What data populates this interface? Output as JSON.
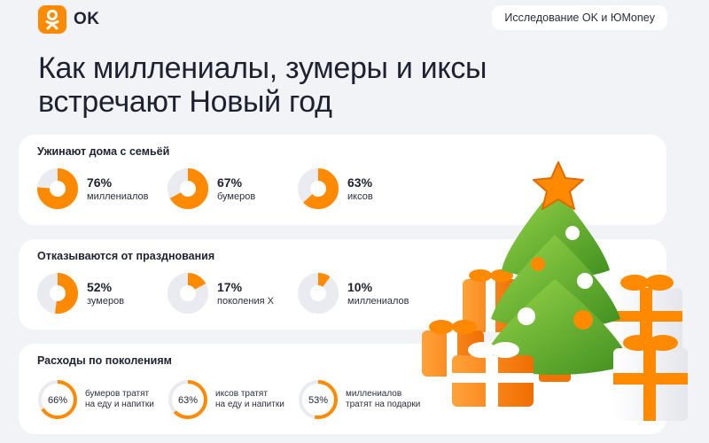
{
  "brand": {
    "name": "OK",
    "research_label": "Исследование OK и ЮMoney",
    "accent": "#ff8a00"
  },
  "headline": {
    "line1": "Как миллениалы, зумеры и иксы",
    "line2": "встречают Новый год"
  },
  "sections": [
    {
      "title": "Ужинают дома с семьёй",
      "items": [
        {
          "value": "76%",
          "fraction": 0.76,
          "label": "миллениалов"
        },
        {
          "value": "67%",
          "fraction": 0.67,
          "label": "бумеров"
        },
        {
          "value": "63%",
          "fraction": 0.63,
          "label": "иксов"
        }
      ]
    },
    {
      "title": "Отказываются от празднования",
      "items": [
        {
          "value": "52%",
          "fraction": 0.52,
          "label": "зумеров"
        },
        {
          "value": "17%",
          "fraction": 0.17,
          "label": "поколения X"
        },
        {
          "value": "10%",
          "fraction": 0.1,
          "label": "миллениалов"
        }
      ]
    },
    {
      "title": "Расходы по поколениям",
      "items": [
        {
          "value": "66%",
          "fraction": 0.66,
          "label_line1": "бумеров тратят",
          "label_line2": "на еду и напитки"
        },
        {
          "value": "63%",
          "fraction": 0.63,
          "label_line1": "иксов тратят",
          "label_line2": "на еду и напитки"
        },
        {
          "value": "53%",
          "fraction": 0.53,
          "label_line1": "миллениалов",
          "label_line2": "тратят на подарки"
        }
      ]
    }
  ],
  "colors": {
    "ring_fill": "#ff8a00",
    "ring_track": "#e9ebf0",
    "background": "#f2f3f7",
    "card": "#ffffff"
  },
  "illustration": "christmas-tree-with-gifts"
}
